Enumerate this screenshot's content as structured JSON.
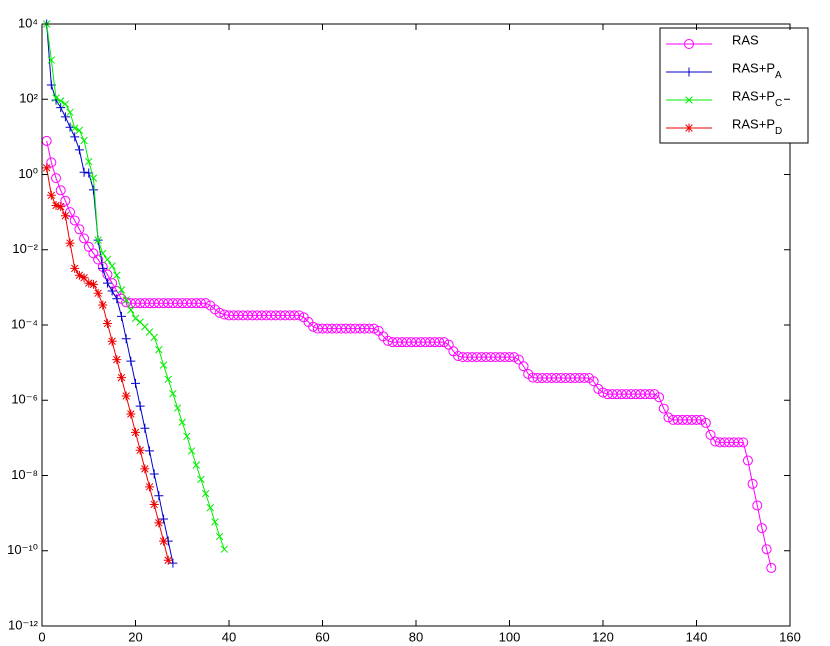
{
  "chart_data": {
    "type": "line",
    "log_y": true,
    "xlim": [
      0,
      160
    ],
    "xticks": [
      0,
      20,
      40,
      60,
      80,
      100,
      120,
      140,
      160
    ],
    "ylim": [
      1e-12,
      10000
    ],
    "yticks": [
      {
        "value": 1e-12,
        "label": "10⁻¹²"
      },
      {
        "value": 1e-10,
        "label": "10⁻¹⁰"
      },
      {
        "value": 1e-08,
        "label": "10⁻⁸"
      },
      {
        "value": 1e-06,
        "label": "10⁻⁶"
      },
      {
        "value": 0.0001,
        "label": "10⁻⁴"
      },
      {
        "value": 0.01,
        "label": "10⁻²"
      },
      {
        "value": 1,
        "label": "10⁰"
      },
      {
        "value": 100,
        "label": "10²"
      },
      {
        "value": 10000,
        "label": "10⁴"
      }
    ],
    "grid": false,
    "legend": "top-right",
    "series": [
      {
        "name": "RAS",
        "color": "#ff00ff",
        "marker": "o",
        "x": [
          1,
          2,
          3,
          4,
          5,
          6,
          7,
          8,
          9,
          10,
          11,
          12,
          13,
          14,
          15,
          16,
          17,
          18,
          19,
          20,
          21,
          22,
          23,
          24,
          25,
          26,
          27,
          28,
          29,
          30,
          31,
          32,
          33,
          34,
          35,
          36,
          37,
          38,
          39,
          40,
          41,
          42,
          43,
          44,
          45,
          46,
          47,
          48,
          49,
          50,
          51,
          52,
          53,
          54,
          55,
          56,
          57,
          58,
          59,
          60,
          61,
          62,
          63,
          64,
          65,
          66,
          67,
          68,
          69,
          70,
          71,
          72,
          73,
          74,
          75,
          76,
          77,
          78,
          79,
          80,
          81,
          82,
          83,
          84,
          85,
          86,
          87,
          88,
          89,
          90,
          91,
          92,
          93,
          94,
          95,
          96,
          97,
          98,
          99,
          100,
          101,
          102,
          103,
          104,
          105,
          106,
          107,
          108,
          109,
          110,
          111,
          112,
          113,
          114,
          115,
          116,
          117,
          118,
          119,
          120,
          121,
          122,
          123,
          124,
          125,
          126,
          127,
          128,
          129,
          130,
          131,
          132,
          133,
          134,
          135,
          136,
          137,
          138,
          139,
          140,
          141,
          142,
          143,
          144,
          145,
          146,
          147,
          148,
          149,
          150,
          151,
          152,
          153,
          154,
          155,
          156
        ],
        "values": [
          7.8,
          2.1,
          0.8,
          0.38,
          0.2,
          0.1,
          0.06,
          0.035,
          0.02,
          0.012,
          0.008,
          0.0055,
          0.0035,
          0.0022,
          0.0013,
          0.0008,
          0.0005,
          0.0004,
          0.00038,
          0.00038,
          0.00038,
          0.00038,
          0.00038,
          0.00038,
          0.00038,
          0.00038,
          0.00038,
          0.00038,
          0.00038,
          0.00038,
          0.00038,
          0.00038,
          0.00038,
          0.00038,
          0.00038,
          0.00033,
          0.00026,
          0.00021,
          0.00019,
          0.00018,
          0.00018,
          0.00018,
          0.00018,
          0.00018,
          0.00018,
          0.00018,
          0.00018,
          0.00018,
          0.00018,
          0.00018,
          0.00018,
          0.00018,
          0.00018,
          0.00018,
          0.00018,
          0.00016,
          0.00012,
          9e-05,
          8e-05,
          8e-05,
          8e-05,
          8e-05,
          8e-05,
          8e-05,
          8e-05,
          8e-05,
          8e-05,
          8e-05,
          8e-05,
          8e-05,
          8e-05,
          7e-05,
          5e-05,
          3.8e-05,
          3.5e-05,
          3.5e-05,
          3.5e-05,
          3.5e-05,
          3.5e-05,
          3.5e-05,
          3.5e-05,
          3.5e-05,
          3.5e-05,
          3.5e-05,
          3.5e-05,
          3.5e-05,
          3e-05,
          2e-05,
          1.5e-05,
          1.4e-05,
          1.4e-05,
          1.4e-05,
          1.4e-05,
          1.4e-05,
          1.4e-05,
          1.4e-05,
          1.4e-05,
          1.4e-05,
          1.4e-05,
          1.4e-05,
          1.4e-05,
          1.2e-05,
          8e-06,
          5e-06,
          4e-06,
          3.9e-06,
          3.9e-06,
          3.9e-06,
          3.9e-06,
          3.9e-06,
          3.9e-06,
          3.9e-06,
          3.9e-06,
          3.9e-06,
          3.9e-06,
          3.9e-06,
          3.9e-06,
          3.2e-06,
          2e-06,
          1.6e-06,
          1.45e-06,
          1.45e-06,
          1.45e-06,
          1.45e-06,
          1.45e-06,
          1.45e-06,
          1.45e-06,
          1.45e-06,
          1.45e-06,
          1.45e-06,
          1.45e-06,
          1.2e-06,
          6e-07,
          3.5e-07,
          3e-07,
          3e-07,
          3e-07,
          3e-07,
          3e-07,
          3e-07,
          3e-07,
          2.5e-07,
          1.2e-07,
          8e-08,
          7.6e-08,
          7.6e-08,
          7.6e-08,
          7.6e-08,
          7.6e-08,
          7.6e-08,
          2.5e-08,
          6e-09,
          1.6e-09,
          4e-10,
          1.1e-10,
          3.5e-11
        ]
      },
      {
        "name": "RAS+PA",
        "color": "#0000cc",
        "marker": "+",
        "x": [
          1,
          2,
          3,
          4,
          5,
          6,
          7,
          8,
          9,
          10,
          11,
          12,
          13,
          14,
          15,
          16,
          17,
          18,
          19,
          20,
          21,
          22,
          23,
          24,
          25,
          26,
          27,
          28
        ],
        "values": [
          10000,
          240,
          95,
          60,
          34,
          18,
          10,
          4.5,
          1.15,
          1.1,
          0.39,
          0.018,
          0.0032,
          0.0013,
          0.0008,
          0.0005,
          0.00017,
          4.3e-05,
          1.1e-05,
          2.8e-06,
          7e-07,
          1.8e-07,
          4.5e-08,
          1.1e-08,
          2.9e-09,
          7e-10,
          1.8e-10,
          4.7e-11
        ]
      },
      {
        "name": "RAS+PC",
        "color": "#00ee00",
        "marker": "x",
        "x": [
          1,
          2,
          3,
          4,
          5,
          6,
          7,
          8,
          9,
          10,
          11,
          12,
          13,
          14,
          15,
          16,
          17,
          18,
          19,
          20,
          21,
          22,
          23,
          24,
          25,
          26,
          27,
          28,
          29,
          30,
          31,
          32,
          33,
          34,
          35,
          36,
          37,
          38,
          39
        ],
        "values": [
          10000,
          1100,
          107,
          90,
          75,
          45,
          17,
          15,
          8,
          2.2,
          0.8,
          0.018,
          0.008,
          0.0055,
          0.0037,
          0.0021,
          0.00086,
          0.00046,
          0.00025,
          0.00015,
          0.00012,
          9e-05,
          6.5e-05,
          4.7e-05,
          2.2e-05,
          8.6e-06,
          3.6e-06,
          1.5e-06,
          6.2e-07,
          2.6e-07,
          1.1e-07,
          4.5e-08,
          1.9e-08,
          7.9e-09,
          3.3e-09,
          1.4e-09,
          5.8e-10,
          2.4e-10,
          1.1e-10
        ]
      },
      {
        "name": "RAS+PD",
        "color": "#ee0000",
        "marker": "*",
        "x": [
          1,
          2,
          3,
          4,
          5,
          6,
          7,
          8,
          9,
          10,
          11,
          12,
          13,
          14,
          15,
          16,
          17,
          18,
          19,
          20,
          21,
          22,
          23,
          24,
          25,
          26,
          27
        ],
        "values": [
          1.5,
          0.28,
          0.15,
          0.14,
          0.08,
          0.015,
          0.0032,
          0.0021,
          0.0018,
          0.0013,
          0.0012,
          0.0007,
          0.00034,
          0.00011,
          3.7e-05,
          1.2e-05,
          4e-06,
          1.3e-06,
          4.3e-07,
          1.4e-07,
          4.7e-08,
          1.5e-08,
          5e-09,
          1.7e-09,
          5.5e-10,
          1.8e-10,
          5.6e-11
        ]
      }
    ]
  }
}
